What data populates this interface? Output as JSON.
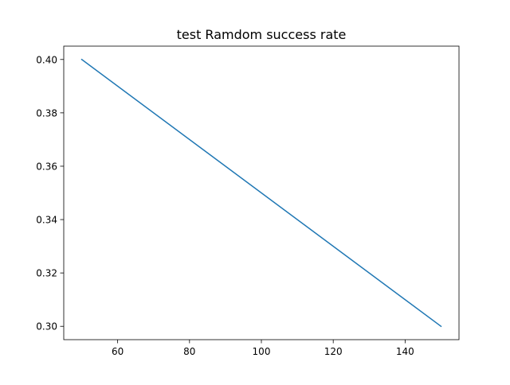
{
  "chart_data": {
    "type": "line",
    "title": "test Ramdom success rate",
    "xlabel": "",
    "ylabel": "",
    "xlim": [
      45,
      155
    ],
    "ylim": [
      0.295,
      0.405
    ],
    "grid": false,
    "x_ticks": [
      {
        "value": 60,
        "label": "60"
      },
      {
        "value": 80,
        "label": "80"
      },
      {
        "value": 100,
        "label": "100"
      },
      {
        "value": 120,
        "label": "120"
      },
      {
        "value": 140,
        "label": "140"
      }
    ],
    "y_ticks": [
      {
        "value": 0.3,
        "label": "0.30"
      },
      {
        "value": 0.32,
        "label": "0.32"
      },
      {
        "value": 0.34,
        "label": "0.34"
      },
      {
        "value": 0.36,
        "label": "0.36"
      },
      {
        "value": 0.38,
        "label": "0.38"
      },
      {
        "value": 0.4,
        "label": "0.40"
      }
    ],
    "series": [
      {
        "color": "#1f77b4",
        "x": [
          50,
          150
        ],
        "y": [
          0.4,
          0.3
        ]
      }
    ]
  }
}
